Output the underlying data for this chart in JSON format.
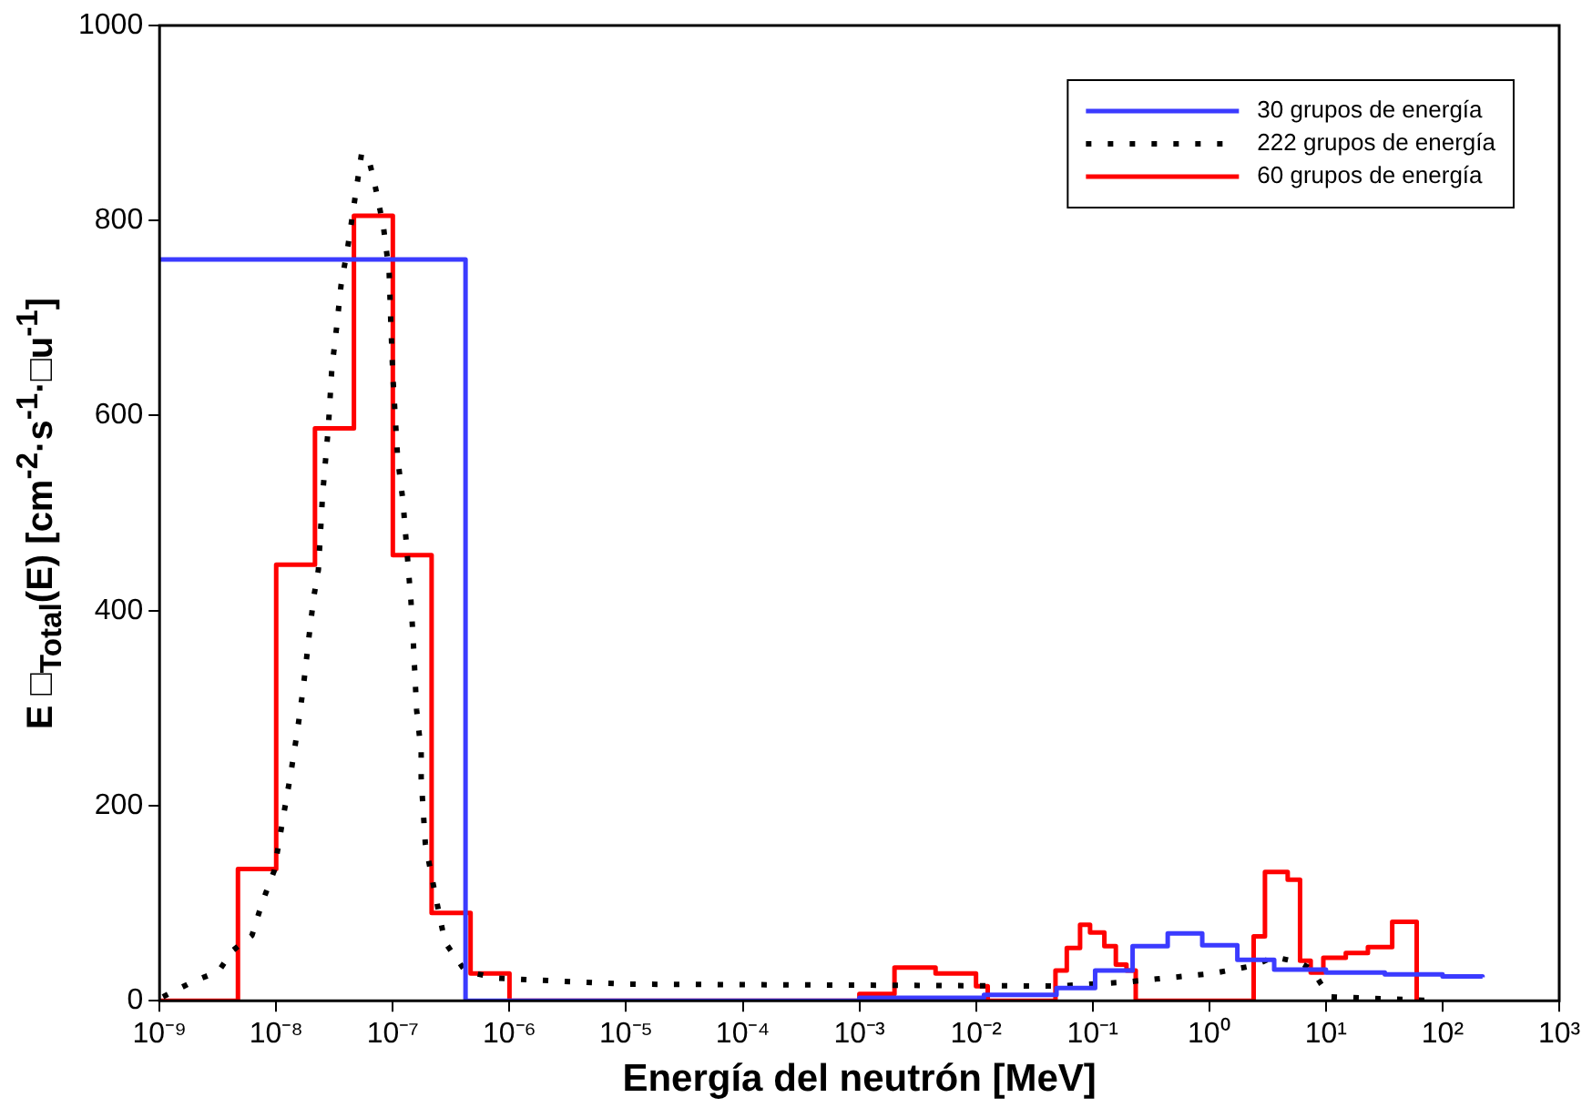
{
  "chart_data": {
    "type": "step",
    "xlabel": "Energía del neutrón [MeV]",
    "ylabel": "E □$_{Total}$(E) [cm$^{-2}$·s$^{-1}$·□u$^{-1}$]",
    "log": "x",
    "xlim": [
      1e-09,
      1000
    ],
    "ylim": [
      0,
      1000
    ],
    "xticks": [
      {
        "value": 1e-09,
        "label": "10⁻⁹"
      },
      {
        "value": 1e-08,
        "label": "10⁻⁸"
      },
      {
        "value": 1e-07,
        "label": "10⁻⁷"
      },
      {
        "value": 1e-06,
        "label": "10⁻⁶"
      },
      {
        "value": 1e-05,
        "label": "10⁻⁵"
      },
      {
        "value": 0.0001,
        "label": "10⁻⁴"
      },
      {
        "value": 0.001,
        "label": "10⁻³"
      },
      {
        "value": 0.01,
        "label": "10⁻²"
      },
      {
        "value": 0.1,
        "label": "10⁻¹"
      },
      {
        "value": 1,
        "label": "10⁰"
      },
      {
        "value": 10,
        "label": "10¹"
      },
      {
        "value": 100,
        "label": "10²"
      },
      {
        "value": 1000,
        "label": "10³"
      }
    ],
    "yticks": [
      0,
      200,
      400,
      600,
      800,
      1000
    ],
    "grid": false,
    "legend": "top right",
    "series": [
      {
        "name": "30 grupos de energía",
        "color": "#3b3bff",
        "line_style": "solid",
        "x": [
          1e-09,
          4.2e-07,
          0.001,
          0.0117,
          0.049,
          0.105,
          0.22,
          0.44,
          0.87,
          1.74,
          3.6,
          10,
          32,
          100,
          220
        ],
        "values": [
          760,
          0,
          3,
          6,
          13,
          31,
          56,
          69,
          57,
          42,
          32,
          29,
          27,
          25,
          24
        ]
      },
      {
        "name": "222 grupos de energía",
        "type": "line",
        "color": "#000000",
        "line_style": "dotted",
        "x": [
          1.07e-09,
          1.96e-09,
          3.2e-09,
          4.2e-09,
          6.2e-09,
          7.6e-09,
          9.6e-09,
          1.14e-08,
          1.33e-08,
          1.53e-08,
          1.71e-08,
          1.91e-08,
          2.1e-08,
          2.3e-08,
          2.5e-08,
          2.8e-08,
          3e-08,
          3.3e-08,
          3.6e-08,
          4.1e-08,
          5.4e-08,
          6.3e-08,
          6.9e-08,
          8.3e-08,
          9.3e-08,
          9.6e-08,
          1e-07,
          1.1e-07,
          1.22e-07,
          1.43e-07,
          1.5e-07,
          1.6e-07,
          1.75e-07,
          1.75e-07,
          1.9e-07,
          2.3e-07,
          2.8e-07,
          4.2e-07,
          8.1e-07,
          1e-05,
          0.001,
          0.049,
          0.186,
          1.07,
          2.4,
          3.6,
          6.0,
          7.6,
          9.1,
          11,
          91
        ],
        "values": [
          4,
          20,
          30,
          51,
          67,
          101,
          133,
          186,
          232,
          279,
          322,
          373,
          414,
          442,
          519,
          588,
          648,
          691,
          734,
          772,
          869,
          860,
          841,
          794,
          747,
          697,
          641,
          556,
          513,
          410,
          367,
          298,
          255,
          228,
          161,
          110,
          60,
          30,
          23,
          17,
          16,
          15,
          19,
          28,
          36,
          45,
          39,
          32,
          17,
          4,
          0
        ]
      },
      {
        "name": "60 grupos de energía",
        "color": "#ff0000",
        "line_style": "solid",
        "x": [
          1e-09,
          4.7e-09,
          1e-08,
          2.15e-08,
          4.64e-08,
          1e-07,
          2.15e-07,
          4.64e-07,
          1e-06,
          0.001,
          0.002,
          0.0045,
          0.01,
          0.0126,
          0.048,
          0.06,
          0.078,
          0.095,
          0.126,
          0.158,
          0.195,
          0.234,
          2.4,
          3.0,
          4.7,
          6.0,
          7.4,
          9.5,
          14.8,
          22.9,
          37,
          60
        ],
        "values": [
          0,
          135,
          447,
          587,
          805,
          457,
          90,
          28,
          0,
          7,
          34,
          28,
          15,
          0,
          31,
          54,
          78,
          70,
          56,
          37,
          31,
          0,
          66,
          132,
          124,
          41,
          29,
          44,
          49,
          55,
          81,
          0
        ]
      }
    ]
  }
}
